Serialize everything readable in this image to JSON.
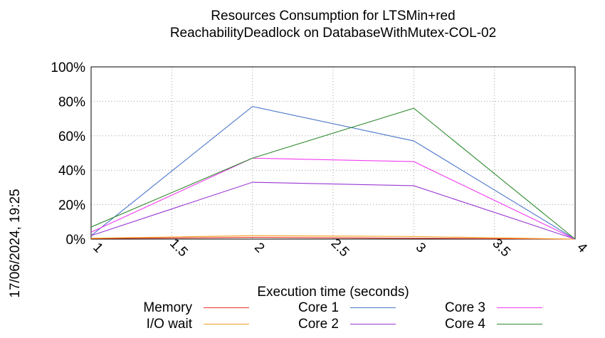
{
  "chart_data": {
    "type": "line",
    "title": "Resources Consumption for LTSMin+red",
    "subtitle": "ReachabilityDeadlock on DatabaseWithMutex-COL-02",
    "xlabel": "Execution time (seconds)",
    "ylabel": "",
    "side_label": "17/06/2024, 19:25",
    "xlim": [
      1,
      4
    ],
    "ylim": [
      0,
      100
    ],
    "x_ticks": [
      "1",
      "1.5",
      "2",
      "2.5",
      "3",
      "3.5",
      "4"
    ],
    "y_ticks": [
      "0%",
      "20%",
      "40%",
      "60%",
      "80%",
      "100%"
    ],
    "grid": true,
    "legend_position": "bottom",
    "x": [
      1,
      2,
      3,
      4
    ],
    "series": [
      {
        "name": "Memory",
        "color": "#e8322a",
        "values": [
          0.3,
          1.0,
          0.5,
          0
        ]
      },
      {
        "name": "I/O wait",
        "color": "#f2a11f",
        "values": [
          0.5,
          2.0,
          1.5,
          0
        ]
      },
      {
        "name": "Core 1",
        "color": "#4a76c9",
        "values": [
          2,
          77,
          57,
          0
        ]
      },
      {
        "name": "Core 2",
        "color": "#9a37d3",
        "values": [
          2,
          33,
          31,
          0
        ]
      },
      {
        "name": "Core 3",
        "color": "#f03cf0",
        "values": [
          4,
          47,
          45,
          0
        ]
      },
      {
        "name": "Core 4",
        "color": "#2f8a2f",
        "values": [
          7,
          47,
          76,
          0
        ]
      }
    ]
  }
}
